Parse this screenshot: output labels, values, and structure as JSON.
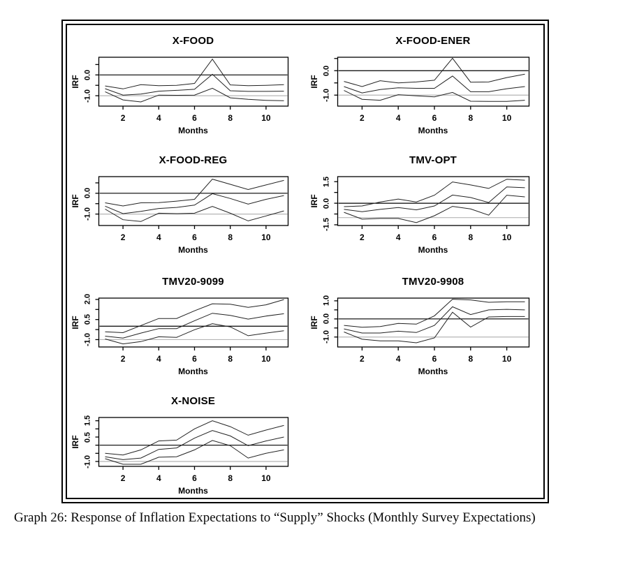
{
  "caption": "Graph 26: Response of Inflation Expectations to “Supply” Shocks (Monthly Survey Expectations)",
  "colors": {
    "series_line": "#222222",
    "zero_line": "#000000",
    "reference_line": "#b5b5b5",
    "frame": "#000000",
    "background": "#ffffff"
  },
  "chart_data": [
    {
      "type": "line",
      "title": "X-FOOD",
      "xlabel": "Months",
      "ylabel": "IRF",
      "grid": {
        "row": 0,
        "col": 0
      },
      "x": [
        1,
        2,
        3,
        4,
        5,
        6,
        7,
        8,
        9,
        10,
        11
      ],
      "x_ticks": [
        2,
        4,
        6,
        8,
        10
      ],
      "ylim": [
        -1.5,
        0.85
      ],
      "y_ticks": [
        {
          "v": 0.5,
          "label": ""
        },
        {
          "v": 0.0,
          "label": "0.0"
        },
        {
          "v": -0.5,
          "label": ""
        },
        {
          "v": -1.0,
          "label": "-1.0"
        }
      ],
      "ref_lines": [
        {
          "y": 0,
          "color": "zero"
        },
        {
          "y": -1,
          "color": "gray"
        }
      ],
      "legend": false,
      "series": [
        {
          "name": "upper_band",
          "values": [
            -0.53,
            -0.67,
            -0.47,
            -0.52,
            -0.5,
            -0.41,
            0.76,
            -0.48,
            -0.52,
            -0.5,
            -0.47
          ]
        },
        {
          "name": "irf_mean",
          "values": [
            -0.66,
            -0.97,
            -0.92,
            -0.78,
            -0.74,
            -0.69,
            0.03,
            -0.76,
            -0.79,
            -0.79,
            -0.78
          ]
        },
        {
          "name": "lower_band",
          "values": [
            -0.81,
            -1.2,
            -1.3,
            -0.97,
            -0.98,
            -0.97,
            -0.64,
            -1.1,
            -1.17,
            -1.22,
            -1.24
          ]
        }
      ]
    },
    {
      "type": "line",
      "title": "X-FOOD-ENER",
      "xlabel": "Months",
      "ylabel": "IRF",
      "grid": {
        "row": 0,
        "col": 1
      },
      "x": [
        1,
        2,
        3,
        4,
        5,
        6,
        7,
        8,
        9,
        10,
        11
      ],
      "x_ticks": [
        2,
        4,
        6,
        8,
        10
      ],
      "ylim": [
        -1.45,
        0.55
      ],
      "y_ticks": [
        {
          "v": 0.5,
          "label": ""
        },
        {
          "v": 0.0,
          "label": "0.0"
        },
        {
          "v": -0.5,
          "label": ""
        },
        {
          "v": -1.0,
          "label": "-1.0"
        }
      ],
      "ref_lines": [
        {
          "y": 0,
          "color": "zero"
        },
        {
          "y": -1,
          "color": "gray"
        }
      ],
      "legend": false,
      "series": [
        {
          "name": "upper_band",
          "values": [
            -0.44,
            -0.65,
            -0.41,
            -0.5,
            -0.46,
            -0.39,
            0.51,
            -0.47,
            -0.46,
            -0.28,
            -0.14
          ]
        },
        {
          "name": "irf_mean",
          "values": [
            -0.65,
            -0.91,
            -0.77,
            -0.7,
            -0.72,
            -0.72,
            -0.22,
            -0.86,
            -0.86,
            -0.74,
            -0.65
          ]
        },
        {
          "name": "lower_band",
          "values": [
            -0.81,
            -1.17,
            -1.21,
            -0.98,
            -1.03,
            -1.07,
            -0.89,
            -1.25,
            -1.26,
            -1.26,
            -1.21
          ]
        }
      ]
    },
    {
      "type": "line",
      "title": "X-FOOD-REG",
      "xlabel": "Months",
      "ylabel": "IRF",
      "grid": {
        "row": 1,
        "col": 0
      },
      "x": [
        1,
        2,
        3,
        4,
        5,
        6,
        7,
        8,
        9,
        10,
        11
      ],
      "x_ticks": [
        2,
        4,
        6,
        8,
        10
      ],
      "ylim": [
        -1.55,
        0.8
      ],
      "y_ticks": [
        {
          "v": 0.5,
          "label": ""
        },
        {
          "v": 0.0,
          "label": "0.0"
        },
        {
          "v": -0.5,
          "label": ""
        },
        {
          "v": -1.0,
          "label": "-1.0"
        }
      ],
      "ref_lines": [
        {
          "y": 0,
          "color": "zero"
        },
        {
          "y": -1,
          "color": "gray"
        }
      ],
      "legend": false,
      "series": [
        {
          "name": "upper_band",
          "values": [
            -0.46,
            -0.61,
            -0.46,
            -0.45,
            -0.38,
            -0.29,
            0.68,
            0.43,
            0.18,
            0.4,
            0.62
          ]
        },
        {
          "name": "irf_mean",
          "values": [
            -0.62,
            -0.98,
            -0.87,
            -0.73,
            -0.68,
            -0.57,
            -0.02,
            -0.25,
            -0.52,
            -0.29,
            -0.11
          ]
        },
        {
          "name": "lower_band",
          "values": [
            -0.76,
            -1.27,
            -1.36,
            -0.96,
            -0.98,
            -0.96,
            -0.63,
            -0.96,
            -1.33,
            -1.09,
            -0.85
          ]
        }
      ]
    },
    {
      "type": "line",
      "title": "TMV-OPT",
      "xlabel": "Months",
      "ylabel": "IRF",
      "grid": {
        "row": 1,
        "col": 1
      },
      "x": [
        1,
        2,
        3,
        4,
        5,
        6,
        7,
        8,
        9,
        10,
        11
      ],
      "x_ticks": [
        2,
        4,
        6,
        8,
        10
      ],
      "ylim": [
        -1.55,
        1.85
      ],
      "y_ticks": [
        {
          "v": 1.5,
          "label": "1.5"
        },
        {
          "v": 0.75,
          "label": ""
        },
        {
          "v": 0.0,
          "label": "0.0"
        },
        {
          "v": -0.75,
          "label": ""
        },
        {
          "v": -1.5,
          "label": "-1.5"
        }
      ],
      "ref_lines": [
        {
          "y": 0,
          "color": "zero"
        },
        {
          "y": -1,
          "color": "gray"
        }
      ],
      "legend": false,
      "series": [
        {
          "name": "upper_band",
          "values": [
            -0.24,
            -0.19,
            0.08,
            0.29,
            0.08,
            0.56,
            1.48,
            1.27,
            1.03,
            1.67,
            1.6
          ]
        },
        {
          "name": "irf_mean",
          "values": [
            -0.43,
            -0.59,
            -0.43,
            -0.3,
            -0.46,
            -0.19,
            0.57,
            0.4,
            0.05,
            1.13,
            1.08
          ]
        },
        {
          "name": "lower_band",
          "values": [
            -0.63,
            -1.11,
            -1.06,
            -1.06,
            -1.35,
            -0.87,
            -0.22,
            -0.4,
            -0.83,
            0.56,
            0.44
          ]
        }
      ]
    },
    {
      "type": "line",
      "title": "TMV20-9099",
      "xlabel": "Months",
      "ylabel": "IRF",
      "grid": {
        "row": 2,
        "col": 0
      },
      "x": [
        1,
        2,
        3,
        4,
        5,
        6,
        7,
        8,
        9,
        10,
        11
      ],
      "x_ticks": [
        2,
        4,
        6,
        8,
        10
      ],
      "ylim": [
        -1.55,
        2.1
      ],
      "y_ticks": [
        {
          "v": 2.0,
          "label": "2.0"
        },
        {
          "v": 1.25,
          "label": ""
        },
        {
          "v": 0.5,
          "label": "0.5"
        },
        {
          "v": -0.25,
          "label": ""
        },
        {
          "v": -1.0,
          "label": "-1.0"
        }
      ],
      "ref_lines": [
        {
          "y": 0,
          "color": "zero"
        },
        {
          "y": -1,
          "color": "gray"
        }
      ],
      "legend": false,
      "series": [
        {
          "name": "upper_band",
          "values": [
            -0.42,
            -0.48,
            0.05,
            0.58,
            0.58,
            1.15,
            1.68,
            1.64,
            1.41,
            1.6,
            1.99
          ]
        },
        {
          "name": "irf_mean",
          "values": [
            -0.74,
            -0.88,
            -0.51,
            -0.18,
            -0.18,
            0.41,
            0.97,
            0.81,
            0.53,
            0.76,
            0.93
          ]
        },
        {
          "name": "lower_band",
          "values": [
            -0.95,
            -1.32,
            -1.15,
            -0.79,
            -0.83,
            -0.26,
            0.19,
            -0.05,
            -0.71,
            -0.51,
            -0.34
          ]
        }
      ]
    },
    {
      "type": "line",
      "title": "TMV20-9908",
      "xlabel": "Months",
      "ylabel": "IRF",
      "grid": {
        "row": 2,
        "col": 1
      },
      "x": [
        1,
        2,
        3,
        4,
        5,
        6,
        7,
        8,
        9,
        10,
        11
      ],
      "x_ticks": [
        2,
        4,
        6,
        8,
        10
      ],
      "ylim": [
        -1.55,
        1.15
      ],
      "y_ticks": [
        {
          "v": 1.0,
          "label": "1.0"
        },
        {
          "v": 0.5,
          "label": ""
        },
        {
          "v": 0.0,
          "label": "0.0"
        },
        {
          "v": -0.5,
          "label": ""
        },
        {
          "v": -1.0,
          "label": "-1.0"
        }
      ],
      "ref_lines": [
        {
          "y": 0,
          "color": "zero"
        },
        {
          "y": -1,
          "color": "gray"
        }
      ],
      "legend": false,
      "series": [
        {
          "name": "upper_band",
          "values": [
            -0.36,
            -0.46,
            -0.42,
            -0.25,
            -0.29,
            0.17,
            1.09,
            1.05,
            0.92,
            0.95,
            0.95
          ]
        },
        {
          "name": "irf_mean",
          "values": [
            -0.55,
            -0.78,
            -0.78,
            -0.68,
            -0.75,
            -0.36,
            0.67,
            0.24,
            0.5,
            0.53,
            0.5
          ]
        },
        {
          "name": "lower_band",
          "values": [
            -0.72,
            -1.12,
            -1.21,
            -1.21,
            -1.32,
            -1.05,
            0.37,
            -0.45,
            0.11,
            0.13,
            0.13
          ]
        }
      ]
    },
    {
      "type": "line",
      "title": "X-NOISE",
      "xlabel": "Months",
      "ylabel": "IRF",
      "grid": {
        "row": 3,
        "col": 0
      },
      "x": [
        1,
        2,
        3,
        4,
        5,
        6,
        7,
        8,
        9,
        10,
        11
      ],
      "x_ticks": [
        2,
        4,
        6,
        8,
        10
      ],
      "ylim": [
        -1.3,
        1.7
      ],
      "y_ticks": [
        {
          "v": 1.5,
          "label": "1.5"
        },
        {
          "v": 1.0,
          "label": ""
        },
        {
          "v": 0.5,
          "label": "0.5"
        },
        {
          "v": 0.0,
          "label": ""
        },
        {
          "v": -0.5,
          "label": ""
        },
        {
          "v": -1.0,
          "label": "-1.0"
        }
      ],
      "ref_lines": [
        {
          "y": 0,
          "color": "zero"
        },
        {
          "y": -1,
          "color": "gray"
        }
      ],
      "legend": false,
      "series": [
        {
          "name": "upper_band",
          "values": [
            -0.5,
            -0.6,
            -0.29,
            0.26,
            0.31,
            1.0,
            1.5,
            1.14,
            0.61,
            0.93,
            1.21
          ]
        },
        {
          "name": "irf_mean",
          "values": [
            -0.71,
            -0.89,
            -0.79,
            -0.26,
            -0.17,
            0.43,
            0.9,
            0.57,
            -0.03,
            0.26,
            0.5
          ]
        },
        {
          "name": "lower_band",
          "values": [
            -0.83,
            -1.17,
            -1.17,
            -0.74,
            -0.71,
            -0.29,
            0.29,
            -0.03,
            -0.79,
            -0.5,
            -0.29
          ]
        }
      ]
    }
  ]
}
